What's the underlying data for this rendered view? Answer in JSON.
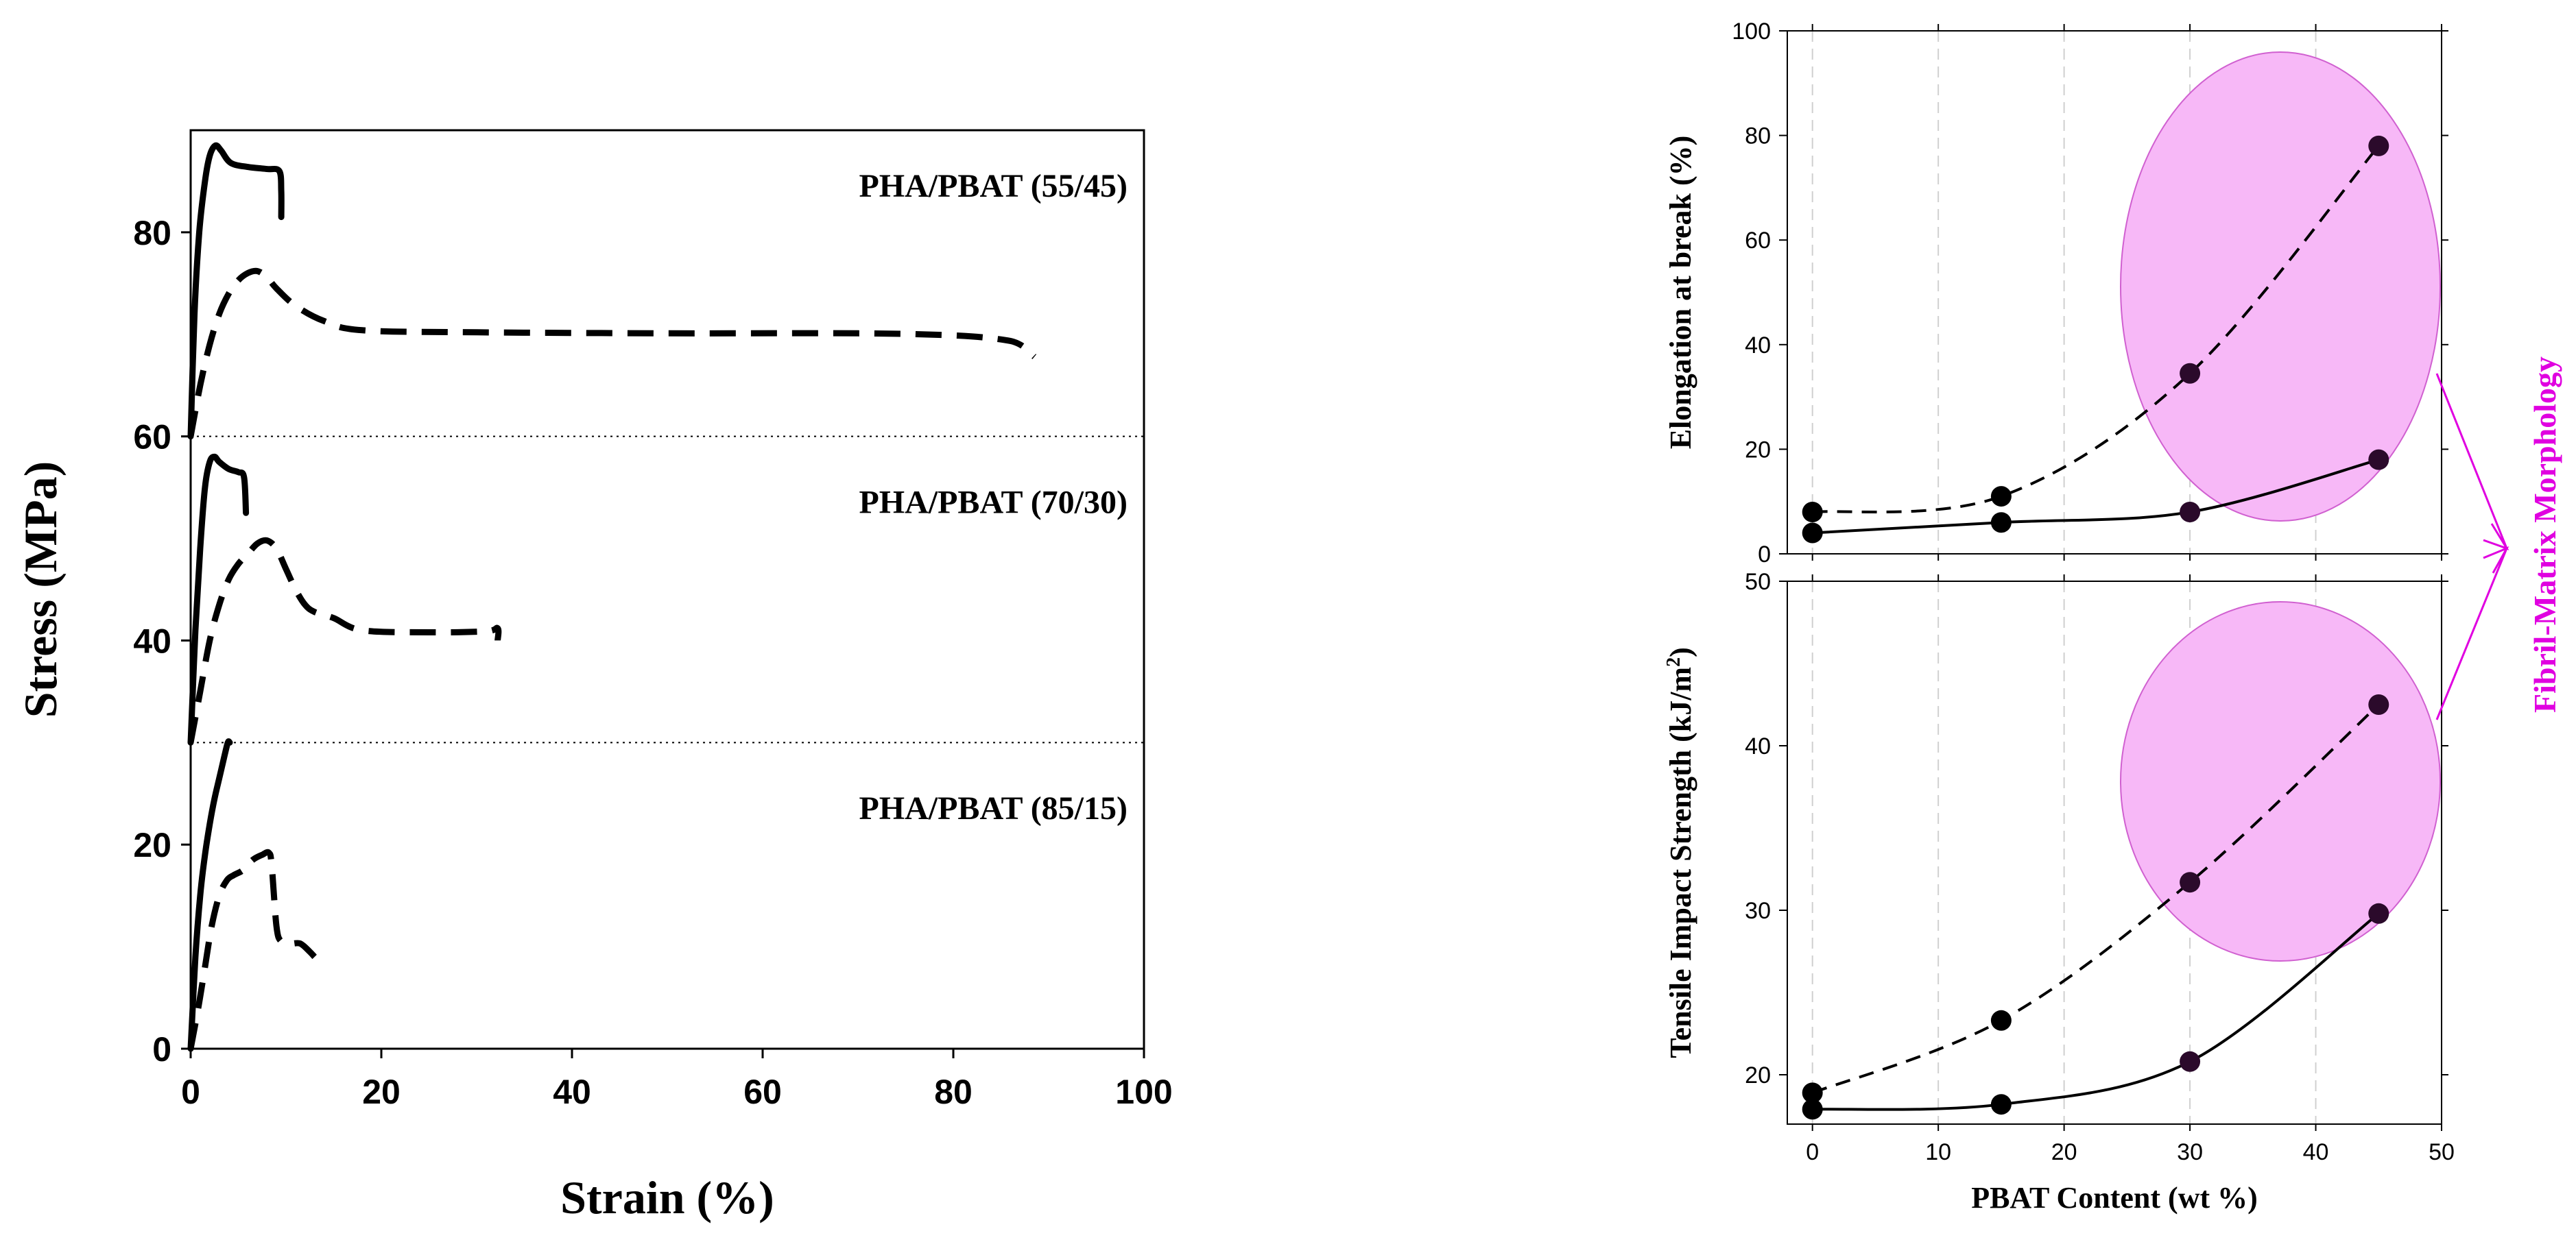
{
  "colors": {
    "ink": "#000000",
    "highlight": "#f7b8f7",
    "highlight_edge": "#d060d0",
    "morph_text": "#e000e0",
    "marker": "#2b0a2b"
  },
  "chart_data": [
    {
      "type": "line",
      "title": "",
      "xlabel": "Strain (%)",
      "ylabel": "Stress (MPa)",
      "xlim": [
        0,
        100
      ],
      "ylim": [
        0,
        90
      ],
      "xticks": [
        "0",
        "20",
        "40",
        "60",
        "80",
        "100"
      ],
      "yticks": [
        "0",
        "20",
        "40",
        "60",
        "80"
      ],
      "reference_lines": [
        30,
        60
      ],
      "annotations": [
        "PHA/PBAT (55/45)",
        "PHA/PBAT (70/30)",
        "PHA/PBAT (85/15)"
      ],
      "series": [
        {
          "name": "PHA/PBAT (55/45) solid",
          "style": "solid",
          "x": [
            0,
            0.4,
            0.9,
            1.5,
            2.0,
            2.6,
            3.2,
            4.2,
            6,
            8,
            9.3,
            9.5,
            9.5
          ],
          "y": [
            60,
            72,
            80,
            85,
            87.5,
            88.5,
            88,
            86.8,
            86.4,
            86.2,
            86,
            84,
            81.5
          ]
        },
        {
          "name": "PHA/PBAT (55/45) dashed",
          "style": "dashed",
          "x": [
            0,
            1,
            2,
            3,
            4,
            5,
            6,
            7,
            8,
            9,
            11,
            14,
            18,
            30,
            50,
            70,
            80,
            85,
            87,
            88.5
          ],
          "y": [
            60,
            65,
            69,
            72,
            74,
            75.3,
            76,
            76.2,
            75.6,
            74.5,
            72.8,
            71.3,
            70.4,
            70.2,
            70.1,
            70.1,
            69.9,
            69.5,
            69,
            67.8
          ]
        },
        {
          "name": "PHA/PBAT (70/30) solid",
          "style": "solid",
          "x": [
            0,
            0.5,
            1,
            1.5,
            2,
            2.5,
            3,
            4,
            5,
            5.6,
            5.8
          ],
          "y": [
            30,
            41,
            49,
            55,
            57.5,
            58,
            57.5,
            56.8,
            56.5,
            56,
            52.5
          ]
        },
        {
          "name": "PHA/PBAT (70/30) dashed",
          "style": "dashed",
          "x": [
            0,
            1,
            2,
            3,
            4,
            5,
            6,
            7,
            8,
            9,
            10,
            11,
            12,
            13,
            15,
            18,
            25,
            31,
            32.2,
            32.2
          ],
          "y": [
            30,
            35,
            40,
            43.5,
            46,
            47.5,
            48.5,
            49.5,
            49.8,
            49,
            47,
            45,
            43.5,
            42.8,
            42.2,
            41,
            40.8,
            40.9,
            41.2,
            40
          ]
        },
        {
          "name": "PHA/PBAT (85/15) solid",
          "style": "solid",
          "x": [
            0,
            0.5,
            1,
            1.5,
            2,
            2.5,
            3,
            3.5,
            3.9,
            4.1
          ],
          "y": [
            0,
            9,
            15,
            19,
            22,
            24.5,
            26.5,
            28.5,
            30,
            30
          ]
        },
        {
          "name": "PHA/PBAT (85/15) dashed",
          "style": "dashed",
          "x": [
            0,
            0.8,
            1.5,
            2.2,
            3,
            3.8,
            4.5,
            5.5,
            6.5,
            7.5,
            8.2,
            8.5,
            9,
            9.5,
            10.5,
            11.5,
            12.5,
            13
          ],
          "y": [
            0,
            4,
            8,
            12,
            15,
            16.5,
            17,
            17.5,
            18.5,
            19,
            19.2,
            18,
            12,
            10.5,
            10.3,
            10.3,
            9.5,
            9
          ]
        }
      ]
    },
    {
      "type": "line",
      "title": "",
      "xlabel": "",
      "ylabel": "Elongation at break (%)",
      "xlim": [
        -2,
        50
      ],
      "ylim": [
        0,
        100
      ],
      "xticks": [
        "0",
        "10",
        "20",
        "30",
        "40",
        "50"
      ],
      "yticks": [
        "0",
        "20",
        "40",
        "60",
        "80",
        "100"
      ],
      "series": [
        {
          "name": "solid",
          "style": "solid",
          "x": [
            0,
            15,
            30,
            45
          ],
          "y": [
            4,
            6,
            8,
            18
          ]
        },
        {
          "name": "dashed",
          "style": "dashed",
          "x": [
            0,
            15,
            30,
            45
          ],
          "y": [
            8,
            11,
            34.5,
            78
          ]
        }
      ]
    },
    {
      "type": "line",
      "title": "",
      "xlabel": "PBAT Content (wt %)",
      "ylabel": "Tensile Impact Strength (kJ/m",
      "ylabel_superscript": "2",
      "ylabel_suffix": ")",
      "xlim": [
        -2,
        50
      ],
      "ylim": [
        17,
        50
      ],
      "xticks": [
        "0",
        "10",
        "20",
        "30",
        "40",
        "50"
      ],
      "yticks": [
        "20",
        "30",
        "40",
        "50"
      ],
      "side_label": "Fibril-Matrix Morphology",
      "series": [
        {
          "name": "solid",
          "style": "solid",
          "x": [
            0,
            15,
            30,
            45
          ],
          "y": [
            17.9,
            18.2,
            20.8,
            29.8
          ]
        },
        {
          "name": "dashed",
          "style": "dashed",
          "x": [
            0,
            15,
            30,
            45
          ],
          "y": [
            18.9,
            23.3,
            31.7,
            42.5
          ]
        }
      ]
    }
  ]
}
